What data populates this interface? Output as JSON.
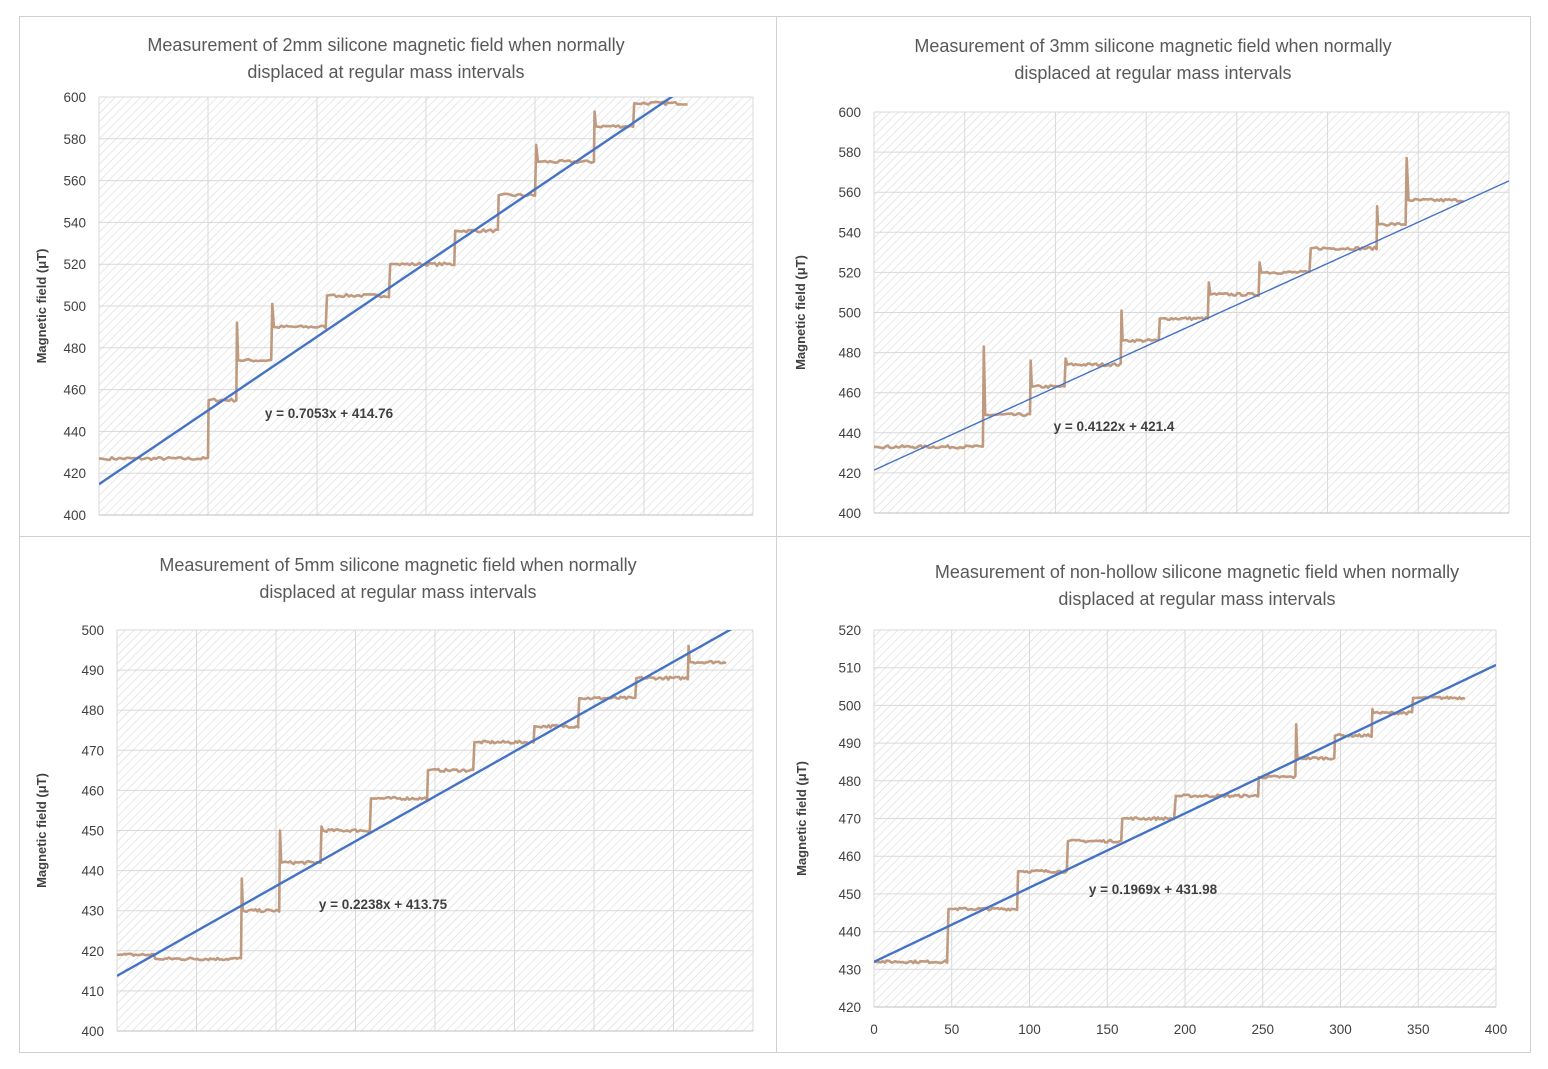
{
  "chart_data": [
    {
      "type": "line",
      "title_lines": [
        "Measurement of 2mm silicone magnetic field when normally",
        "displaced at regular mass intervals"
      ],
      "xlabel": "",
      "ylabel": "Magnetic field (μT)",
      "xlim": [
        0,
        300
      ],
      "ylim": [
        400,
        600
      ],
      "yticks": [
        400,
        420,
        440,
        460,
        480,
        500,
        520,
        540,
        560,
        580,
        600
      ],
      "xticks": [],
      "grid": true,
      "trendline": {
        "slope": 0.7053,
        "intercept": 414.76,
        "label": "y = 0.7053x + 414.76"
      },
      "series": [
        {
          "x_end": 270,
          "steps": [
            {
              "x": 0,
              "y": 427,
              "spike": null
            },
            {
              "x": 50,
              "y": 455,
              "spike": null
            },
            {
              "x": 63,
              "y": 474,
              "spike": 492
            },
            {
              "x": 79,
              "y": 490,
              "spike": 501
            },
            {
              "x": 104,
              "y": 505,
              "spike": null
            },
            {
              "x": 133,
              "y": 520,
              "spike": null
            },
            {
              "x": 163,
              "y": 536,
              "spike": null
            },
            {
              "x": 183,
              "y": 553,
              "spike": null
            },
            {
              "x": 200,
              "y": 569,
              "spike": 577
            },
            {
              "x": 227,
              "y": 586,
              "spike": 593
            },
            {
              "x": 245,
              "y": 597,
              "spike": null
            }
          ]
        }
      ]
    },
    {
      "type": "line",
      "title_lines": [
        "Measurement of 3mm silicone magnetic field when normally",
        "displaced at regular mass intervals"
      ],
      "xlabel": "",
      "ylabel": "Magnetic field (μT)",
      "xlim": [
        0,
        350
      ],
      "ylim": [
        400,
        600
      ],
      "yticks": [
        400,
        420,
        440,
        460,
        480,
        500,
        520,
        540,
        560,
        580,
        600
      ],
      "xticks": [],
      "grid": true,
      "trendline": {
        "slope": 0.4122,
        "intercept": 421.4,
        "label": "y = 0.4122x + 421.4"
      },
      "series": [
        {
          "x_end": 325,
          "steps": [
            {
              "x": 0,
              "y": 433,
              "spike": null
            },
            {
              "x": 60,
              "y": 449,
              "spike": 483
            },
            {
              "x": 86,
              "y": 463,
              "spike": 476
            },
            {
              "x": 105,
              "y": 474,
              "spike": 477
            },
            {
              "x": 136,
              "y": 486,
              "spike": 501
            },
            {
              "x": 157,
              "y": 497,
              "spike": null
            },
            {
              "x": 184,
              "y": 509,
              "spike": 515
            },
            {
              "x": 212,
              "y": 520,
              "spike": 525
            },
            {
              "x": 240,
              "y": 532,
              "spike": null
            },
            {
              "x": 277,
              "y": 544,
              "spike": 553
            },
            {
              "x": 293,
              "y": 556,
              "spike": 577
            }
          ]
        }
      ]
    },
    {
      "type": "line",
      "title_lines": [
        "Measurement of 5mm silicone magnetic field when normally",
        "displaced at regular mass intervals"
      ],
      "xlabel": "",
      "ylabel": "Magnetic field (μT)",
      "xlim": [
        0,
        400
      ],
      "ylim": [
        400,
        500
      ],
      "yticks": [
        400,
        410,
        420,
        430,
        440,
        450,
        460,
        470,
        480,
        490,
        500
      ],
      "xticks": [],
      "grid": true,
      "trendline": {
        "slope": 0.2238,
        "intercept": 413.75,
        "label": "y = 0.2238x + 413.75"
      },
      "series": [
        {
          "x_end": 383,
          "steps": [
            {
              "x": 0,
              "y": 419,
              "spike": null
            },
            {
              "x": 23,
              "y": 418,
              "spike": null
            },
            {
              "x": 78,
              "y": 430,
              "spike": 438
            },
            {
              "x": 102,
              "y": 442,
              "spike": 450
            },
            {
              "x": 128,
              "y": 450,
              "spike": 451
            },
            {
              "x": 159,
              "y": 458,
              "spike": null
            },
            {
              "x": 195,
              "y": 465,
              "spike": null
            },
            {
              "x": 224,
              "y": 472,
              "spike": null
            },
            {
              "x": 262,
              "y": 476,
              "spike": null
            },
            {
              "x": 290,
              "y": 483,
              "spike": null
            },
            {
              "x": 326,
              "y": 488,
              "spike": null
            },
            {
              "x": 359,
              "y": 492,
              "spike": 496
            }
          ]
        }
      ]
    },
    {
      "type": "line",
      "title_lines": [
        "Measurement of non-hollow silicone magnetic field when normally",
        "displaced at regular mass intervals"
      ],
      "xlabel": "",
      "ylabel": "Magnetic field (μT)",
      "xlim": [
        0,
        400
      ],
      "ylim": [
        420,
        520
      ],
      "yticks": [
        420,
        430,
        440,
        450,
        460,
        470,
        480,
        490,
        500,
        510,
        520
      ],
      "xticks": [
        0,
        50,
        100,
        150,
        200,
        250,
        300,
        350,
        400
      ],
      "grid": true,
      "trendline": {
        "slope": 0.1969,
        "intercept": 431.98,
        "label": "y = 0.1969x + 431.98"
      },
      "series": [
        {
          "x_end": 380,
          "steps": [
            {
              "x": 0,
              "y": 432,
              "spike": null
            },
            {
              "x": 47,
              "y": 446,
              "spike": null
            },
            {
              "x": 92,
              "y": 456,
              "spike": null
            },
            {
              "x": 124,
              "y": 464,
              "spike": null
            },
            {
              "x": 159,
              "y": 470,
              "spike": null
            },
            {
              "x": 193,
              "y": 476,
              "spike": null
            },
            {
              "x": 247,
              "y": 481,
              "spike": null
            },
            {
              "x": 271,
              "y": 486,
              "spike": 495
            },
            {
              "x": 296,
              "y": 492,
              "spike": null
            },
            {
              "x": 320,
              "y": 498,
              "spike": 499
            },
            {
              "x": 346,
              "y": 502,
              "spike": null
            }
          ]
        }
      ]
    }
  ]
}
